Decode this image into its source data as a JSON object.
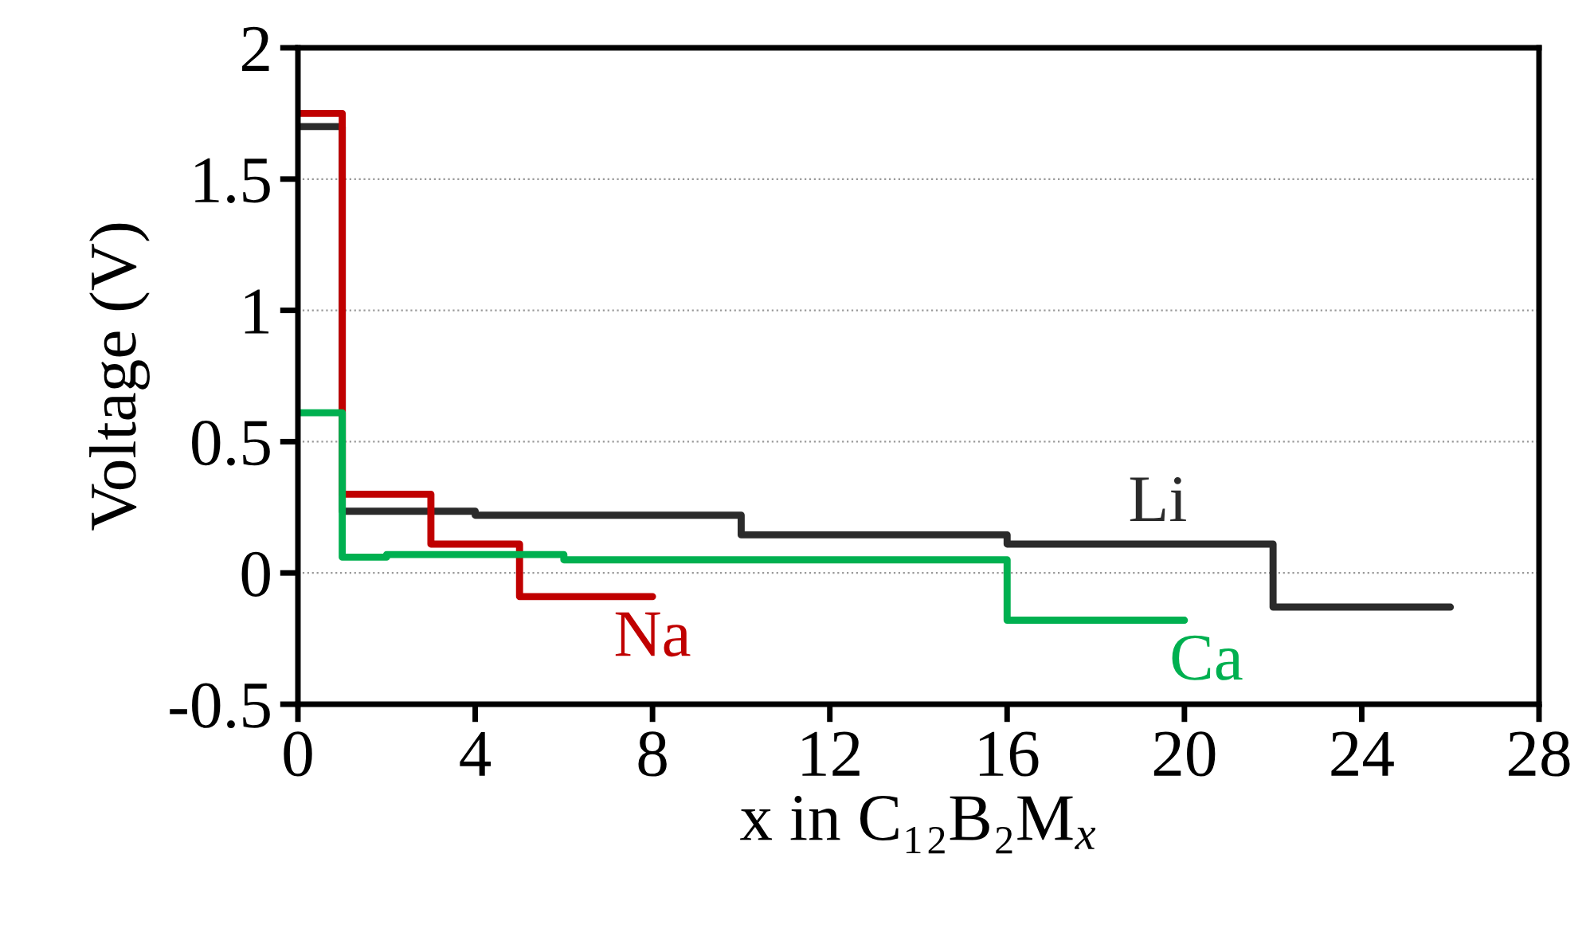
{
  "chart_data": {
    "type": "step",
    "xlabel": "x in C₁₂B₂M$_{x}$",
    "ylabel": "Voltage (V)",
    "xlim": [
      0,
      28
    ],
    "xticks": [
      0,
      4,
      8,
      12,
      16,
      20,
      24,
      28
    ],
    "ylim": [
      -0.5,
      2
    ],
    "yticks": [
      {
        "value": -0.5,
        "label": "-0.5"
      },
      0,
      0.5,
      1,
      1.5,
      2
    ],
    "grid": "y",
    "legend": false,
    "line_style": "solid",
    "marker": "none",
    "series": [
      {
        "name": "Li",
        "color": "#2b2b2b",
        "x": [
          0,
          1,
          4,
          10,
          16,
          22,
          26
        ],
        "values": [
          1.7,
          0.235,
          0.22,
          0.145,
          0.11,
          -0.13,
          -0.13
        ]
      },
      {
        "name": "Na",
        "color": "#c00000",
        "x": [
          0,
          1,
          3,
          5,
          8
        ],
        "values": [
          1.75,
          0.3,
          0.11,
          -0.09,
          -0.09
        ]
      },
      {
        "name": "Ca",
        "color": "#00b050",
        "x": [
          0,
          1,
          2,
          6,
          16,
          20
        ],
        "values": [
          0.61,
          0.06,
          0.07,
          0.05,
          -0.18,
          -0.18
        ]
      }
    ]
  }
}
